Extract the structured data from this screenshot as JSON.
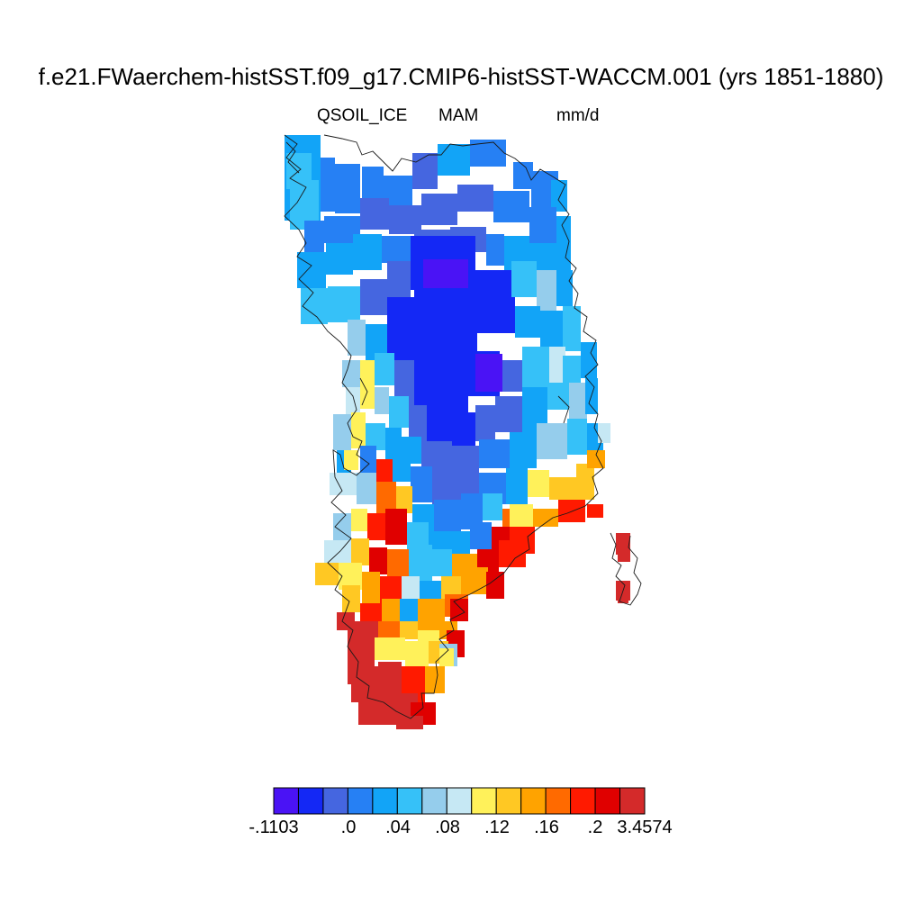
{
  "title": "f.e21.FWaerchem-histSST.f09_g17.CMIP6-histSST-WACCM.001 (yrs 1851-1880)",
  "subtitle": {
    "variable": "QSOIL_ICE",
    "season": "MAM",
    "units": "mm/d"
  },
  "colorbar": {
    "colors": [
      "#4a13f5",
      "#1428f5",
      "#4566e0",
      "#2680f4",
      "#12a4f7",
      "#36c1f8",
      "#95cdec",
      "#c6e8f4",
      "#fff15a",
      "#ffc823",
      "#ffa300",
      "#ff6a00",
      "#ff1a00",
      "#e00000",
      "#d42a2a"
    ],
    "labels": [
      "-.1103",
      ".0",
      ".04",
      ".08",
      ".12",
      ".16",
      ".2",
      "3.4574"
    ]
  }
}
